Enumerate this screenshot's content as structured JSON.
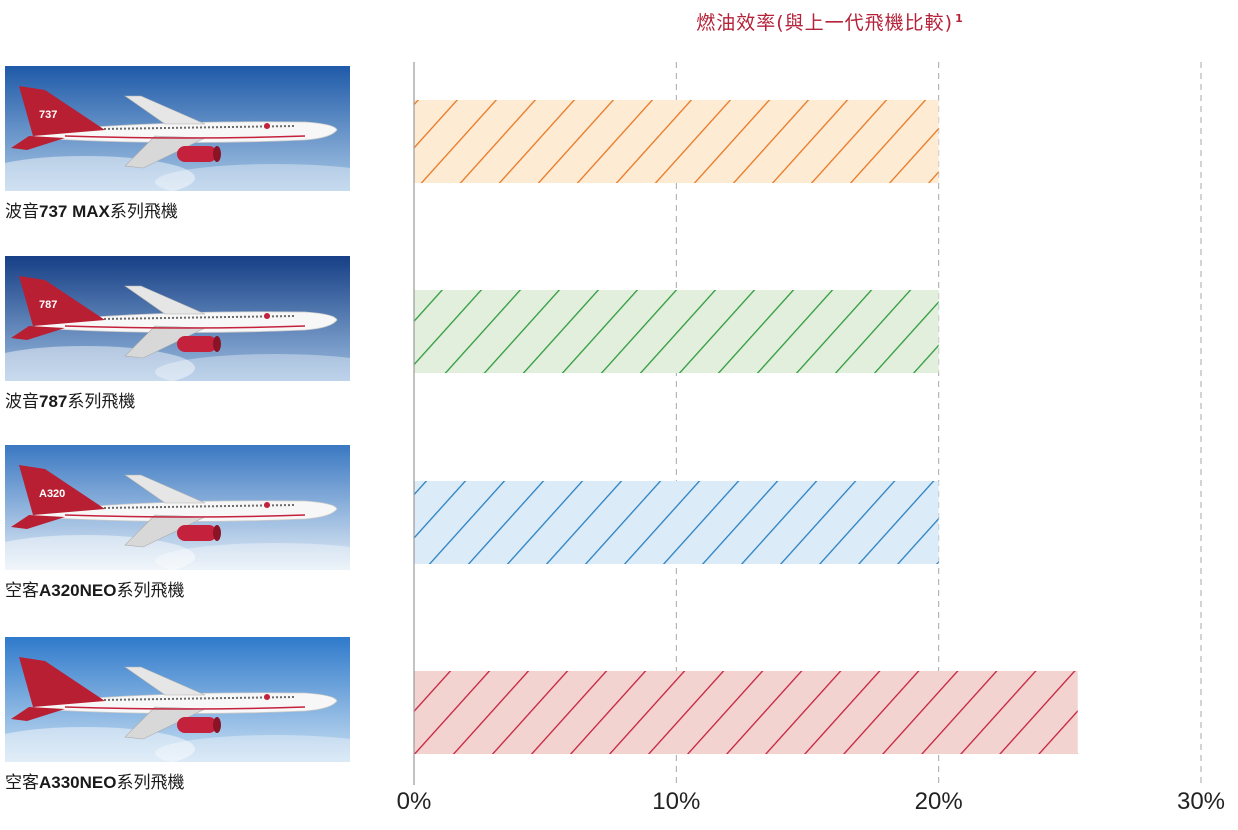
{
  "title": {
    "text": "燃油效率(與上一代飛機比較)",
    "footnote": "1"
  },
  "aircraft": [
    {
      "caption_prefix": "波音",
      "caption_bold": "737 MAX",
      "caption_suffix": "系列飛機",
      "tail_text": "737",
      "sky": [
        "#1f5aa8",
        "#a9c8e6"
      ],
      "color": "#e87722",
      "fill": "#fdebd4"
    },
    {
      "caption_prefix": "波音",
      "caption_bold": "787",
      "caption_suffix": "系列飛機",
      "tail_text": "787",
      "sky": [
        "#163f86",
        "#9bbce0"
      ],
      "color": "#2e9a3c",
      "fill": "#e2efdc"
    },
    {
      "caption_prefix": "空客",
      "caption_bold": "A320NEO",
      "caption_suffix": "系列飛機",
      "tail_text": "A320",
      "sky": [
        "#3a78c2",
        "#e3edf6"
      ],
      "color": "#2a7fc1",
      "fill": "#dbecf8"
    },
    {
      "caption_prefix": "空客",
      "caption_bold": "A330NEO",
      "caption_suffix": "系列飛機",
      "tail_text": "",
      "sky": [
        "#2f7acb",
        "#c9dff2"
      ],
      "color": "#c4213c",
      "fill": "#f3d3d0"
    }
  ],
  "chart_data": {
    "type": "bar",
    "orientation": "horizontal",
    "title": "燃油效率(與上一代飛機比較)",
    "categories": [
      "波音737 MAX系列飛機",
      "波音787系列飛機",
      "空客A320NEO系列飛機",
      "空客A330NEO系列飛機"
    ],
    "values": [
      20,
      20,
      20,
      25.3
    ],
    "unit": "%",
    "xlim": [
      0,
      30
    ],
    "xticks": [
      0,
      10,
      20,
      30
    ],
    "xtick_labels": [
      "0%",
      "10%",
      "20%",
      "30%"
    ],
    "grid": "vertical-dashed",
    "bar_pattern": "diagonal-hatch"
  }
}
